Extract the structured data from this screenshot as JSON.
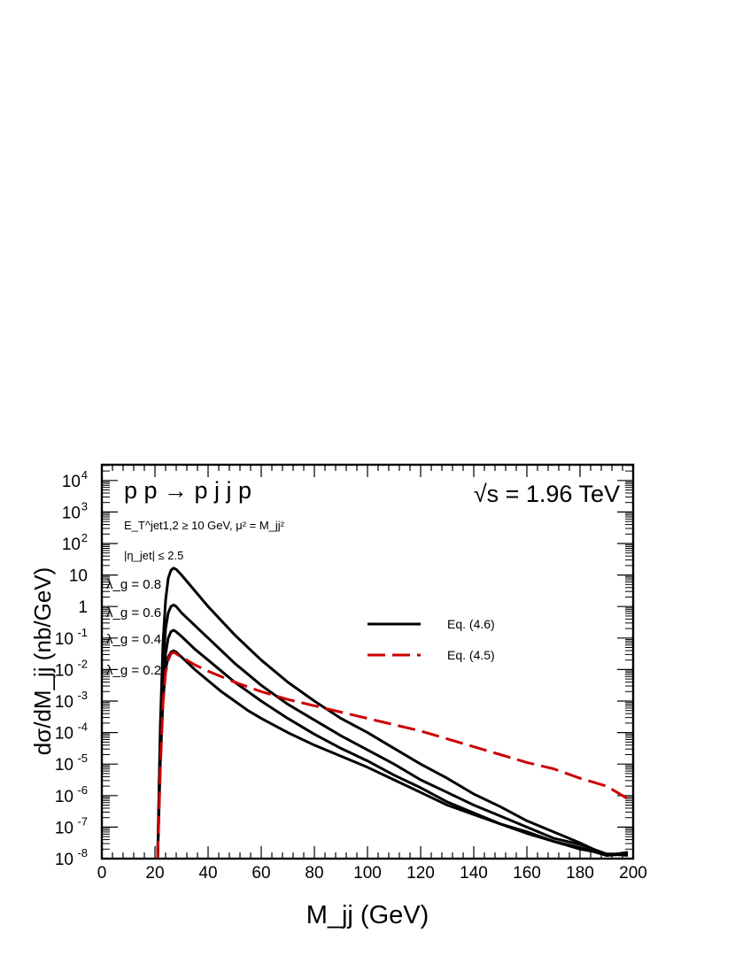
{
  "chart_data": {
    "type": "line",
    "process": "p p → p j j p",
    "energy": "√s = 1.96 TeV",
    "cut_et": "E_T^jet1,2 ≥ 10 GeV,  μ² = M_jj²",
    "cut_eta": "|η_jet| ≤ 2.5",
    "xlabel": "M_jj   (GeV)",
    "ylabel": "dσ/dM_jj  (nb/GeV)",
    "xlim": [
      0,
      200
    ],
    "ylim_log10": [
      -8,
      4.5
    ],
    "y_scale": "log",
    "x_ticks": [
      "0",
      "20",
      "40",
      "60",
      "80",
      "100",
      "120",
      "140",
      "160",
      "180",
      "200"
    ],
    "y_tick_labels": [
      {
        "exp": -8,
        "label": "10",
        "sup": "-8"
      },
      {
        "exp": -7,
        "label": "10",
        "sup": "-7"
      },
      {
        "exp": -6,
        "label": "10",
        "sup": "-6"
      },
      {
        "exp": -5,
        "label": "10",
        "sup": "-5"
      },
      {
        "exp": -4,
        "label": "10",
        "sup": "-4"
      },
      {
        "exp": -3,
        "label": "10",
        "sup": "-3"
      },
      {
        "exp": -2,
        "label": "10",
        "sup": "-2"
      },
      {
        "exp": -1,
        "label": "10",
        "sup": "-1"
      },
      {
        "exp": 0,
        "label": "1",
        "sup": ""
      },
      {
        "exp": 1,
        "label": "10",
        "sup": ""
      },
      {
        "exp": 2,
        "label": "10",
        "sup": "2"
      },
      {
        "exp": 3,
        "label": "10",
        "sup": "3"
      },
      {
        "exp": 4,
        "label": "10",
        "sup": "4"
      }
    ],
    "legend": {
      "placement": "center-right",
      "entries": [
        {
          "label": "Eq. (4.6)",
          "color": "#000000",
          "style": "solid"
        },
        {
          "label": "Eq. (4.5)",
          "color": "#cc0000",
          "style": "dashed"
        }
      ]
    },
    "curve_labels": [
      "λ_g = 0.8",
      "λ_g = 0.6",
      "λ_g = 0.4",
      "λ_g = 0.2"
    ],
    "series": [
      {
        "name": "Eq. (4.6), λ_g = 0.8",
        "color": "#000000",
        "style": "solid",
        "points": [
          [
            21,
            -8
          ],
          [
            22,
            -3.8
          ],
          [
            23,
            -1.2
          ],
          [
            24,
            0.2
          ],
          [
            25,
            0.9
          ],
          [
            26,
            1.15
          ],
          [
            27,
            1.22
          ],
          [
            28,
            1.18
          ],
          [
            30,
            1.0
          ],
          [
            35,
            0.5
          ],
          [
            40,
            0.0
          ],
          [
            45,
            -0.45
          ],
          [
            50,
            -0.9
          ],
          [
            55,
            -1.3
          ],
          [
            60,
            -1.7
          ],
          [
            70,
            -2.4
          ],
          [
            80,
            -3.0
          ],
          [
            90,
            -3.55
          ],
          [
            100,
            -4.0
          ],
          [
            110,
            -4.5
          ],
          [
            120,
            -5.0
          ],
          [
            130,
            -5.45
          ],
          [
            140,
            -5.95
          ],
          [
            150,
            -6.35
          ],
          [
            160,
            -6.8
          ],
          [
            170,
            -7.15
          ],
          [
            180,
            -7.5
          ],
          [
            190,
            -7.9
          ],
          [
            198,
            -7.85
          ]
        ]
      },
      {
        "name": "Eq. (4.6), λ_g = 0.6",
        "color": "#000000",
        "style": "solid",
        "points": [
          [
            21,
            -8
          ],
          [
            22,
            -4.2
          ],
          [
            23,
            -1.9
          ],
          [
            24,
            -0.7
          ],
          [
            25,
            -0.2
          ],
          [
            26,
            0.0
          ],
          [
            27,
            0.05
          ],
          [
            28,
            0.0
          ],
          [
            30,
            -0.2
          ],
          [
            35,
            -0.6
          ],
          [
            40,
            -1.0
          ],
          [
            45,
            -1.4
          ],
          [
            50,
            -1.8
          ],
          [
            55,
            -2.15
          ],
          [
            60,
            -2.5
          ],
          [
            70,
            -3.1
          ],
          [
            80,
            -3.6
          ],
          [
            90,
            -4.1
          ],
          [
            100,
            -4.55
          ],
          [
            110,
            -5.0
          ],
          [
            120,
            -5.5
          ],
          [
            130,
            -5.9
          ],
          [
            140,
            -6.3
          ],
          [
            150,
            -6.65
          ],
          [
            160,
            -7.0
          ],
          [
            170,
            -7.35
          ],
          [
            180,
            -7.55
          ],
          [
            190,
            -7.85
          ],
          [
            198,
            -7.9
          ]
        ]
      },
      {
        "name": "Eq. (4.6), λ_g = 0.4",
        "color": "#000000",
        "style": "solid",
        "points": [
          [
            21,
            -8
          ],
          [
            22,
            -4.6
          ],
          [
            23,
            -2.5
          ],
          [
            24,
            -1.5
          ],
          [
            25,
            -1.0
          ],
          [
            26,
            -0.8
          ],
          [
            27,
            -0.75
          ],
          [
            28,
            -0.8
          ],
          [
            30,
            -0.95
          ],
          [
            35,
            -1.35
          ],
          [
            40,
            -1.7
          ],
          [
            45,
            -2.05
          ],
          [
            50,
            -2.4
          ],
          [
            55,
            -2.7
          ],
          [
            60,
            -3.0
          ],
          [
            70,
            -3.55
          ],
          [
            80,
            -4.05
          ],
          [
            90,
            -4.5
          ],
          [
            100,
            -4.9
          ],
          [
            110,
            -5.35
          ],
          [
            120,
            -5.75
          ],
          [
            130,
            -6.2
          ],
          [
            140,
            -6.55
          ],
          [
            150,
            -6.9
          ],
          [
            160,
            -7.2
          ],
          [
            170,
            -7.45
          ],
          [
            180,
            -7.7
          ],
          [
            190,
            -7.85
          ],
          [
            198,
            -7.85
          ]
        ]
      },
      {
        "name": "Eq. (4.6), λ_g = 0.2",
        "color": "#000000",
        "style": "solid",
        "points": [
          [
            21,
            -8
          ],
          [
            22,
            -5.0
          ],
          [
            23,
            -3.0
          ],
          [
            24,
            -2.0
          ],
          [
            25,
            -1.6
          ],
          [
            26,
            -1.45
          ],
          [
            27,
            -1.4
          ],
          [
            28,
            -1.45
          ],
          [
            30,
            -1.6
          ],
          [
            35,
            -2.0
          ],
          [
            40,
            -2.35
          ],
          [
            45,
            -2.7
          ],
          [
            50,
            -3.0
          ],
          [
            55,
            -3.3
          ],
          [
            60,
            -3.55
          ],
          [
            70,
            -4.0
          ],
          [
            80,
            -4.4
          ],
          [
            90,
            -4.75
          ],
          [
            100,
            -5.1
          ],
          [
            110,
            -5.5
          ],
          [
            120,
            -5.9
          ],
          [
            130,
            -6.3
          ],
          [
            140,
            -6.6
          ],
          [
            150,
            -6.9
          ],
          [
            160,
            -7.15
          ],
          [
            170,
            -7.45
          ],
          [
            180,
            -7.65
          ],
          [
            190,
            -7.9
          ],
          [
            198,
            -7.8
          ]
        ]
      },
      {
        "name": "Eq. (4.5)",
        "color": "#cc0000",
        "style": "dashed",
        "points": [
          [
            21,
            -8
          ],
          [
            22,
            -5.2
          ],
          [
            23,
            -3.1
          ],
          [
            24,
            -2.1
          ],
          [
            25,
            -1.7
          ],
          [
            26,
            -1.5
          ],
          [
            27,
            -1.45
          ],
          [
            28,
            -1.5
          ],
          [
            30,
            -1.6
          ],
          [
            35,
            -1.85
          ],
          [
            40,
            -2.05
          ],
          [
            50,
            -2.4
          ],
          [
            60,
            -2.7
          ],
          [
            70,
            -2.95
          ],
          [
            80,
            -3.15
          ],
          [
            90,
            -3.35
          ],
          [
            100,
            -3.55
          ],
          [
            110,
            -3.75
          ],
          [
            120,
            -3.95
          ],
          [
            130,
            -4.2
          ],
          [
            140,
            -4.45
          ],
          [
            150,
            -4.7
          ],
          [
            160,
            -4.95
          ],
          [
            170,
            -5.15
          ],
          [
            180,
            -5.45
          ],
          [
            190,
            -5.7
          ],
          [
            198,
            -6.1
          ]
        ]
      }
    ]
  }
}
